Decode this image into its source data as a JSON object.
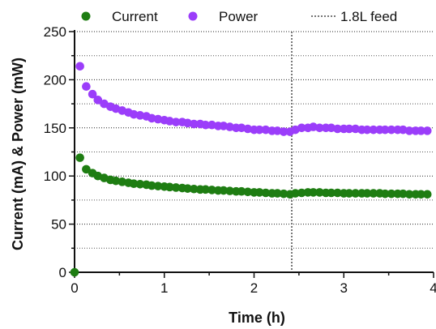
{
  "chart_data": {
    "type": "scatter",
    "title": "",
    "xlabel": "Time (h)",
    "ylabel": "Current (mA) & Power (mW)",
    "xlim": [
      0,
      4
    ],
    "ylim": [
      0,
      250
    ],
    "x_ticks": [
      "0",
      "1",
      "2",
      "3",
      "4"
    ],
    "y_ticks": [
      "0",
      "50",
      "100",
      "150",
      "200",
      "250"
    ],
    "grid": "horizontal dotted",
    "legend_position": "top",
    "colors": {
      "current": "#1e7d12",
      "power": "#9b3dfa",
      "feed": "#777777"
    },
    "feed_marker": {
      "label": "1.8L feed",
      "x": 2.42
    },
    "series": [
      {
        "name": "Current",
        "x": [
          0,
          0.06,
          0.13,
          0.2,
          0.26,
          0.33,
          0.4,
          0.46,
          0.53,
          0.6,
          0.66,
          0.73,
          0.8,
          0.86,
          0.93,
          1.0,
          1.06,
          1.13,
          1.2,
          1.26,
          1.33,
          1.4,
          1.46,
          1.53,
          1.6,
          1.66,
          1.73,
          1.8,
          1.86,
          1.93,
          2.0,
          2.06,
          2.13,
          2.2,
          2.26,
          2.33,
          2.4,
          2.46,
          2.53,
          2.6,
          2.66,
          2.73,
          2.8,
          2.86,
          2.93,
          3.0,
          3.06,
          3.13,
          3.2,
          3.26,
          3.33,
          3.4,
          3.46,
          3.53,
          3.6,
          3.66,
          3.73,
          3.8,
          3.86,
          3.93
        ],
        "values": [
          0,
          119,
          107,
          103,
          100,
          98,
          96,
          95,
          94,
          93,
          92,
          91.5,
          91,
          90,
          89.5,
          89,
          88.5,
          88,
          87.5,
          87,
          86.5,
          86,
          86,
          85.5,
          85,
          85,
          84.5,
          84,
          84,
          83.5,
          83,
          83,
          82.5,
          82,
          82,
          81.5,
          81,
          82,
          82.5,
          83,
          83,
          83,
          82.5,
          82.5,
          82.5,
          82,
          82,
          82,
          82,
          82,
          82,
          82,
          81.5,
          81.5,
          81.5,
          81.5,
          81,
          81,
          81,
          81
        ]
      },
      {
        "name": "Power",
        "x": [
          0.06,
          0.13,
          0.2,
          0.26,
          0.33,
          0.4,
          0.46,
          0.53,
          0.6,
          0.66,
          0.73,
          0.8,
          0.86,
          0.93,
          1.0,
          1.06,
          1.13,
          1.2,
          1.26,
          1.33,
          1.4,
          1.46,
          1.53,
          1.6,
          1.66,
          1.73,
          1.8,
          1.86,
          1.93,
          2.0,
          2.06,
          2.13,
          2.2,
          2.26,
          2.33,
          2.4,
          2.46,
          2.53,
          2.6,
          2.66,
          2.73,
          2.8,
          2.86,
          2.93,
          3.0,
          3.06,
          3.13,
          3.2,
          3.26,
          3.33,
          3.4,
          3.46,
          3.53,
          3.6,
          3.66,
          3.73,
          3.8,
          3.86,
          3.93
        ],
        "values": [
          214,
          193,
          185,
          179,
          175,
          172,
          170,
          168,
          166,
          164,
          163,
          162,
          160,
          159,
          158,
          157,
          156,
          156,
          155,
          154,
          154,
          153,
          153,
          152,
          152,
          151,
          150,
          150,
          149,
          148,
          148,
          148,
          147,
          147,
          146,
          146,
          148,
          150,
          150,
          151,
          150,
          150,
          150,
          149,
          149,
          149,
          149,
          148,
          148,
          148,
          148,
          148,
          148,
          148,
          148,
          147,
          147,
          147,
          147
        ]
      }
    ]
  }
}
